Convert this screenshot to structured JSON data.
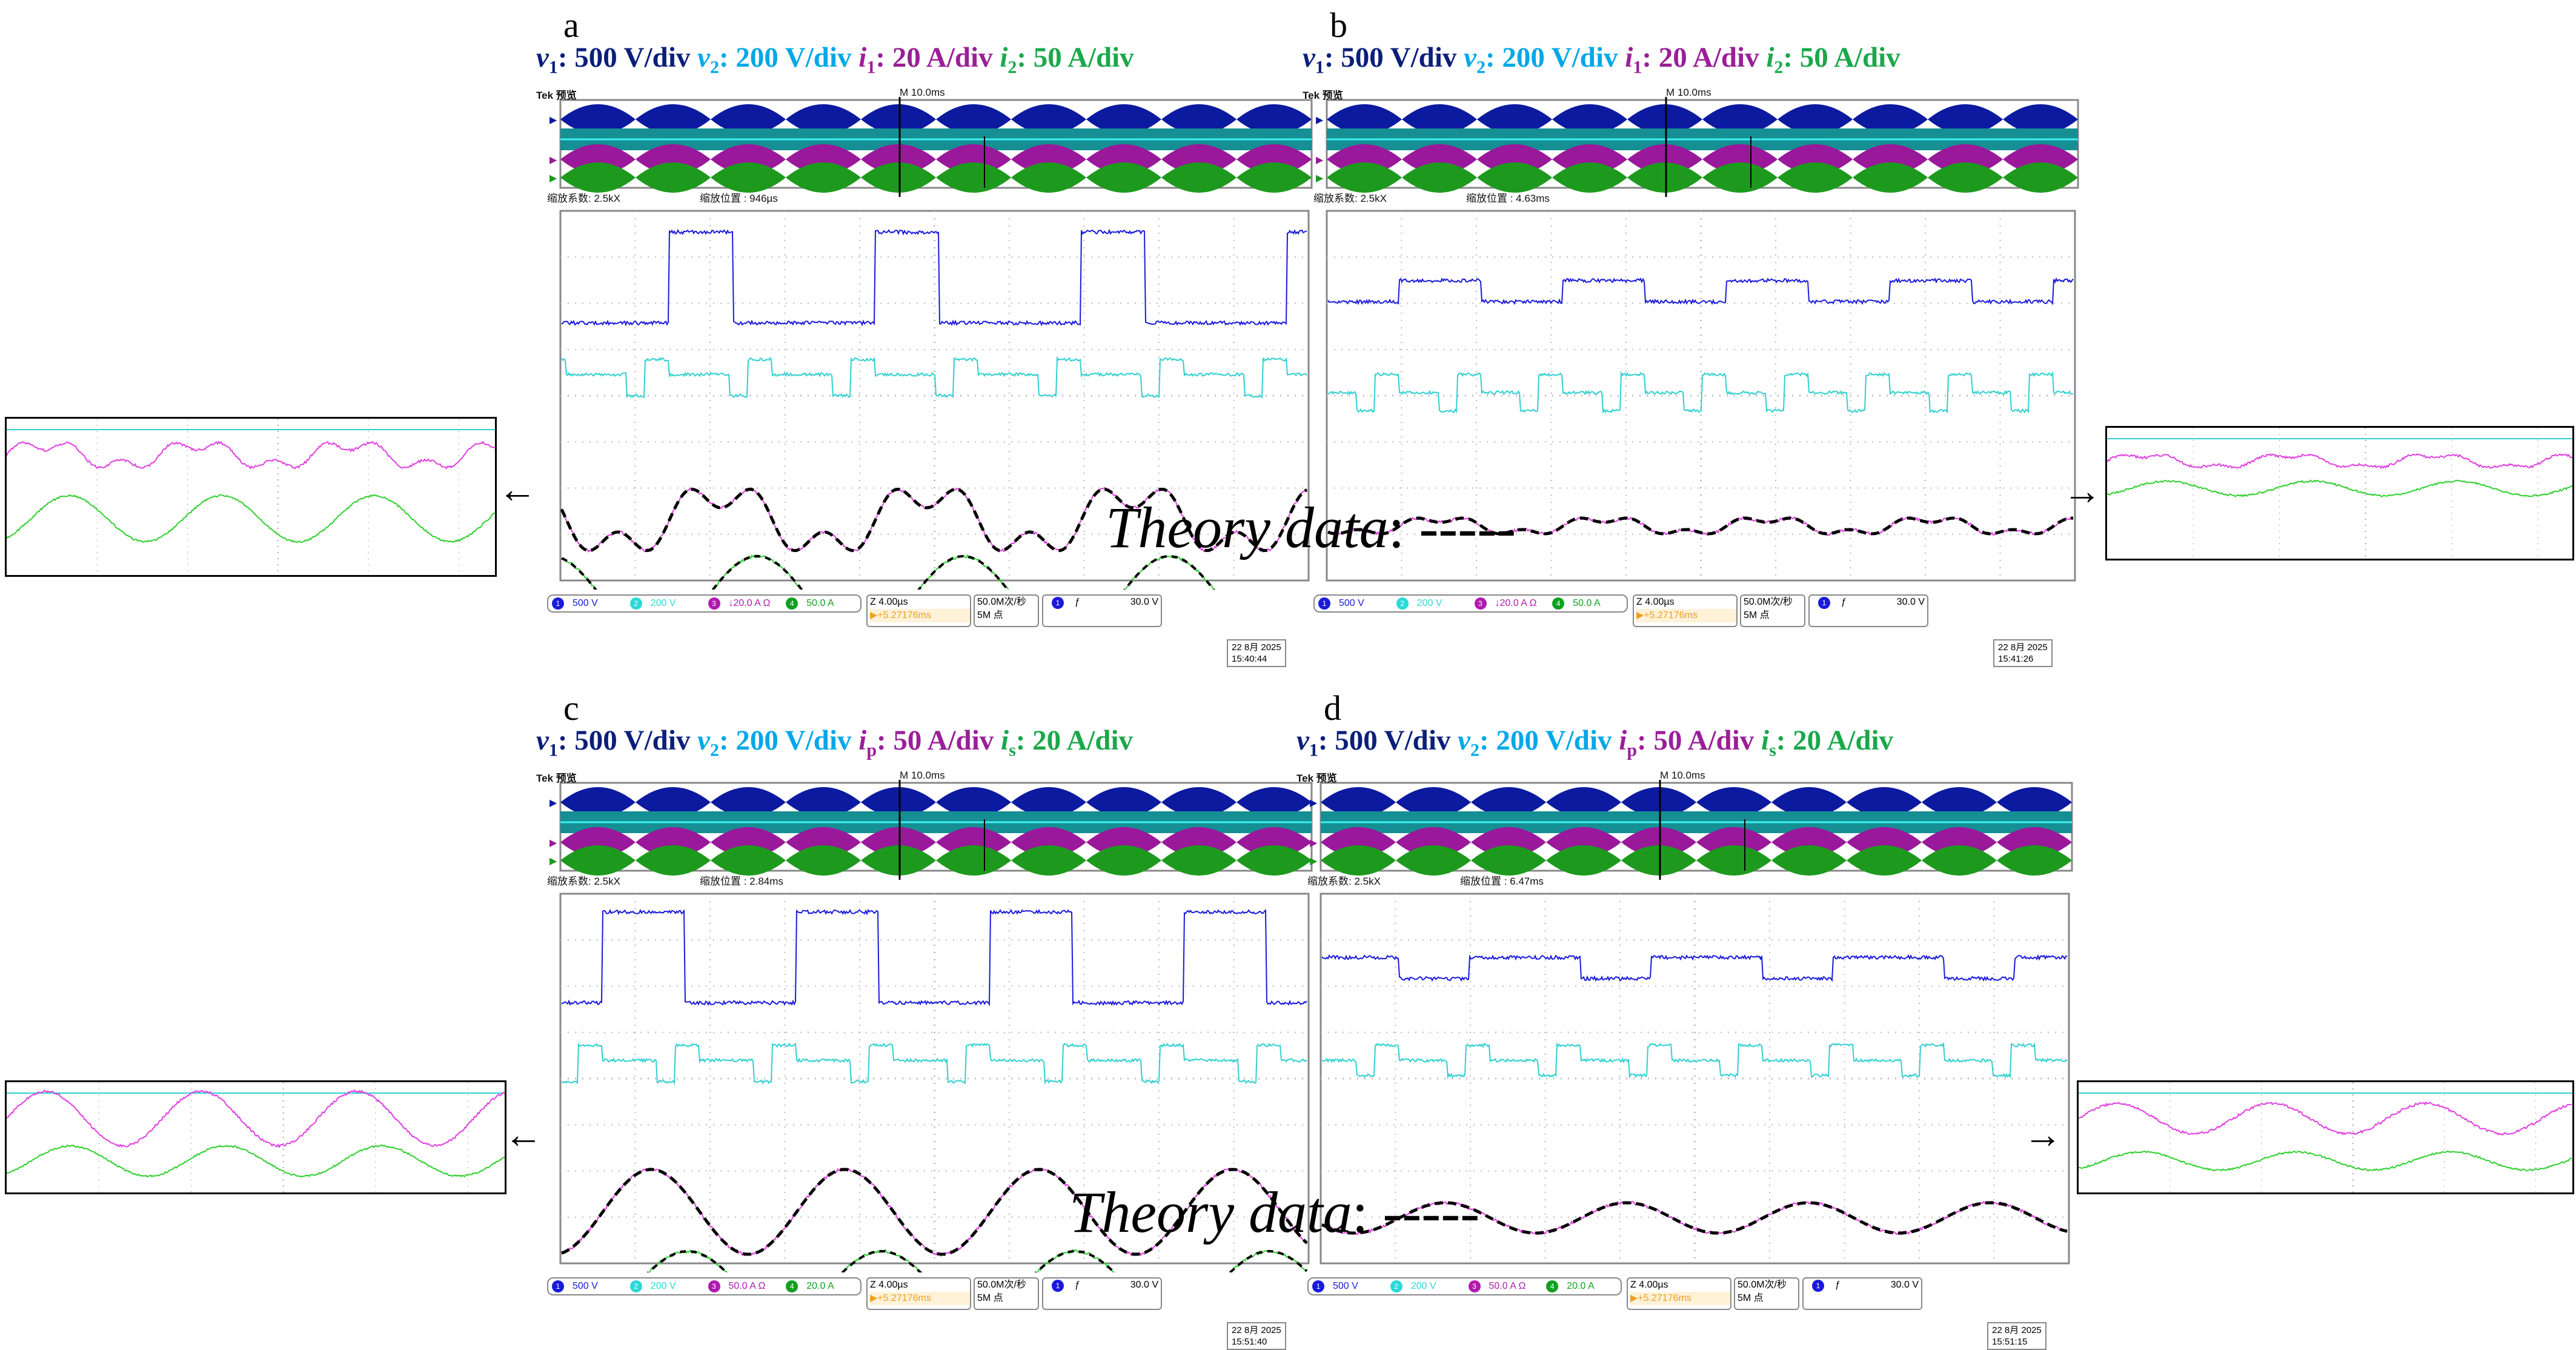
{
  "colors": {
    "v1": "#0b1f7a",
    "v2": "#00a8e8",
    "i1": "#9a1f98",
    "i2": "#1aa84a",
    "ch1": "#1a1adc",
    "ch2": "#2dd8d8",
    "ch3": "#b01ab0",
    "ch4": "#10a020"
  },
  "panels": [
    {
      "label": "a",
      "header": [
        {
          "var": "v",
          "sub": "1",
          "text": ": 500 V/div "
        },
        {
          "var": "v",
          "sub": "2",
          "text": ": 200 V/div "
        },
        {
          "var": "i",
          "sub": "1",
          "text": ": 20 A/div "
        },
        {
          "var": "i",
          "sub": "2",
          "text": ": 50 A/div"
        }
      ],
      "scope": {
        "title": "Tek 预览",
        "timebase": "M 10.0ms",
        "zoom_factor": "缩放系数: 2.5kX",
        "zoom_position": "缩放位置 : 946µs",
        "channels": [
          {
            "n": "1",
            "scale": "500 V"
          },
          {
            "n": "2",
            "scale": "200 V"
          },
          {
            "n": "3",
            "scale": "↓20.0 A Ω"
          },
          {
            "n": "4",
            "scale": "50.0 A"
          }
        ],
        "horizontal": "Z 4.00µs",
        "offset": "▶+5.27176ms",
        "rate": "50.0M次/秒",
        "points": "5M 点",
        "trigger_ch": "1",
        "trigger_slope": "ƒ",
        "trigger_level": "30.0 V",
        "date": "22 8月  2025",
        "time": "15:40:44"
      }
    },
    {
      "label": "b",
      "header": [
        {
          "var": "v",
          "sub": "1",
          "text": ": 500 V/div "
        },
        {
          "var": "v",
          "sub": "2",
          "text": ": 200 V/div "
        },
        {
          "var": "i",
          "sub": "1",
          "text": ": 20 A/div "
        },
        {
          "var": "i",
          "sub": "2",
          "text": ": 50 A/div"
        }
      ],
      "scope": {
        "title": "Tek 预览",
        "timebase": "M 10.0ms",
        "zoom_factor": "缩放系数: 2.5kX",
        "zoom_position": "缩放位置 : 4.63ms",
        "channels": [
          {
            "n": "1",
            "scale": "500 V"
          },
          {
            "n": "2",
            "scale": "200 V"
          },
          {
            "n": "3",
            "scale": "↓20.0 A Ω"
          },
          {
            "n": "4",
            "scale": "50.0 A"
          }
        ],
        "horizontal": "Z 4.00µs",
        "offset": "▶+5.27176ms",
        "rate": "50.0M次/秒",
        "points": "5M 点",
        "trigger_ch": "1",
        "trigger_slope": "ƒ",
        "trigger_level": "30.0 V",
        "date": "22 8月  2025",
        "time": "15:41:26"
      }
    },
    {
      "label": "c",
      "header": [
        {
          "var": "v",
          "sub": "1",
          "text": ": 500 V/div "
        },
        {
          "var": "v",
          "sub": "2",
          "text": ": 200 V/div "
        },
        {
          "var": "i",
          "sub": "p",
          "text": ": 50 A/div "
        },
        {
          "var": "i",
          "sub": "s",
          "text": ": 20 A/div"
        }
      ],
      "scope": {
        "title": "Tek 预览",
        "timebase": "M 10.0ms",
        "zoom_factor": "缩放系数: 2.5kX",
        "zoom_position": "缩放位置 : 2.84ms",
        "channels": [
          {
            "n": "1",
            "scale": "500 V"
          },
          {
            "n": "2",
            "scale": "200 V"
          },
          {
            "n": "3",
            "scale": "50.0 A Ω"
          },
          {
            "n": "4",
            "scale": "20.0 A"
          }
        ],
        "horizontal": "Z 4.00µs",
        "offset": "▶+5.27176ms",
        "rate": "50.0M次/秒",
        "points": "5M 点",
        "trigger_ch": "1",
        "trigger_slope": "ƒ",
        "trigger_level": "30.0 V",
        "date": "22 8月  2025",
        "time": "15:51:40"
      }
    },
    {
      "label": "d",
      "header": [
        {
          "var": "v",
          "sub": "1",
          "text": ": 500 V/div "
        },
        {
          "var": "v",
          "sub": "2",
          "text": ": 200 V/div "
        },
        {
          "var": "i",
          "sub": "p",
          "text": ": 50 A/div "
        },
        {
          "var": "i",
          "sub": "s",
          "text": ": 20 A/div"
        }
      ],
      "scope": {
        "title": "Tek 预览",
        "timebase": "M 10.0ms",
        "zoom_factor": "缩放系数: 2.5kX",
        "zoom_position": "缩放位置 : 6.47ms",
        "channels": [
          {
            "n": "1",
            "scale": "500 V"
          },
          {
            "n": "2",
            "scale": "200 V"
          },
          {
            "n": "3",
            "scale": "50.0 A Ω"
          },
          {
            "n": "4",
            "scale": "20.0 A"
          }
        ],
        "horizontal": "Z 4.00µs",
        "offset": "▶+5.27176ms",
        "rate": "50.0M次/秒",
        "points": "5M 点",
        "trigger_ch": "1",
        "trigger_slope": "ƒ",
        "trigger_level": "30.0 V",
        "date": "22 8月  2025",
        "time": "15:51:15"
      }
    }
  ],
  "theory": [
    {
      "label": "Theory data",
      "dash": ": -----"
    },
    {
      "label": "Theory data",
      "dash": ": -----"
    }
  ],
  "arrows": [
    "←",
    "→",
    "←",
    "→"
  ]
}
